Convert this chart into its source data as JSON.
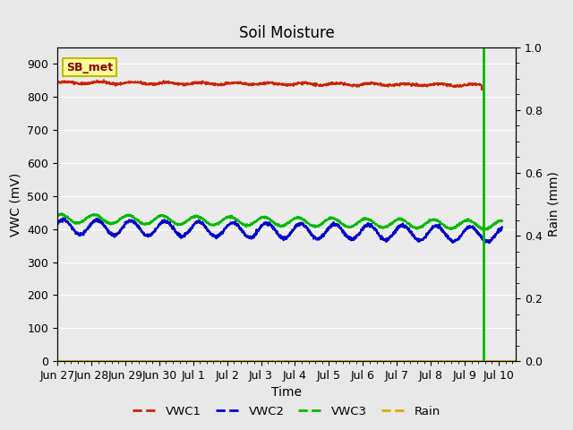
{
  "title": "Soil Moisture",
  "xlabel": "Time",
  "ylabel_left": "VWC (mV)",
  "ylabel_right": "Rain (mm)",
  "ylim_left": [
    0,
    950
  ],
  "ylim_right": [
    0,
    1.0
  ],
  "yticks_left": [
    0,
    100,
    200,
    300,
    400,
    500,
    600,
    700,
    800,
    900
  ],
  "yticks_right": [
    0.0,
    0.2,
    0.4,
    0.6,
    0.8,
    1.0
  ],
  "xlim": [
    0,
    13.5
  ],
  "xtick_labels": [
    "Jun 27",
    "Jun 28",
    "Jun 29",
    "Jun 30",
    "Jul 1",
    "Jul 2",
    "Jul 3",
    "Jul 4",
    "Jul 5",
    "Jul 6",
    "Jul 7",
    "Jul 8",
    "Jul 9",
    "Jul 10"
  ],
  "xtick_positions": [
    0,
    1,
    2,
    3,
    4,
    5,
    6,
    7,
    8,
    9,
    10,
    11,
    12,
    13
  ],
  "fig_bg_color": "#e8e8e8",
  "plot_bg_color": "#ebebeb",
  "grid_color": "#ffffff",
  "vwc1_color": "#cc2200",
  "vwc2_color": "#0000cc",
  "vwc3_color": "#00bb00",
  "rain_color": "#ddaa00",
  "annotation_text": "SB_met",
  "annotation_bg": "#ffff99",
  "annotation_border": "#bbbb00",
  "legend_labels": [
    "VWC1",
    "VWC2",
    "VWC3",
    "Rain"
  ],
  "vwc1_base": 843,
  "vwc1_noise_amp": 2,
  "vwc1_sin_amp": 3,
  "vwc1_sin_period": 1.0,
  "vwc1_drift": -0.6,
  "vwc2_base": 407,
  "vwc2_sin_amp": 22,
  "vwc2_sin_period": 1.0,
  "vwc2_drift": -1.8,
  "vwc3_base": 432,
  "vwc3_sin_amp": 13,
  "vwc3_sin_period": 1.0,
  "vwc3_drift": -1.5,
  "drop_x": 12.5,
  "drop_from": 832,
  "drop_to": 820,
  "rain_spike_x": 12.55,
  "n_points": 2000
}
